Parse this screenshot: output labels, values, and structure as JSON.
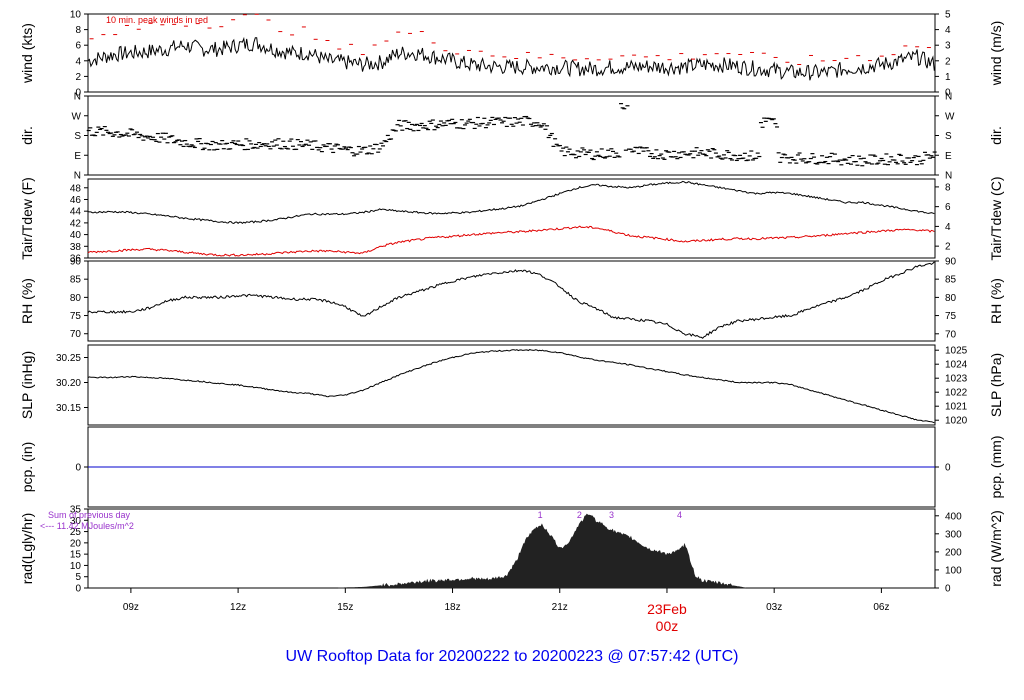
{
  "title": "UW Rooftop Data for 20200222  to  20200223 @ 07:57:42  (UTC)",
  "x_axis": {
    "ticks": [
      "09z",
      "12z",
      "15z",
      "18z",
      "21z",
      "00z",
      "03z",
      "06z"
    ],
    "date_label": "23Feb",
    "date_tick": "00z",
    "date_color": "#e00000"
  },
  "chart_data": [
    {
      "type": "line",
      "name": "wind",
      "ylabel_left": "wind (kts)",
      "ylabel_right": "wind (m/s)",
      "left_ticks": [
        "0",
        "2",
        "4",
        "6",
        "8",
        "10"
      ],
      "right_ticks": [
        "0",
        "1",
        "2",
        "3",
        "4",
        "5"
      ],
      "ylim": [
        0,
        10
      ],
      "annotation": "10 min. peak winds in red",
      "annotation_color": "#e00000",
      "x": [
        7.8,
        8.5,
        9,
        9.5,
        10,
        10.5,
        11,
        11.5,
        12,
        12.5,
        13,
        13.5,
        14,
        14.5,
        15,
        15.5,
        16,
        16.5,
        17,
        17.5,
        18,
        18.5,
        19,
        19.5,
        20,
        20.5,
        21,
        21.5,
        22,
        22.5,
        23,
        23.5,
        24,
        24.5,
        25,
        25.5,
        26,
        26.5,
        27,
        27.5,
        28,
        28.5,
        29,
        29.5,
        30,
        30.5,
        31,
        31.5
      ],
      "series": [
        {
          "values": [
            4,
            4.8,
            5,
            5.2,
            5.5,
            6,
            5.5,
            5.5,
            6,
            6.3,
            5.5,
            5,
            5,
            4,
            3.8,
            3.5,
            3.8,
            5,
            5,
            4.5,
            4,
            3.5,
            3.3,
            3.2,
            3.2,
            3.2,
            3.2,
            3,
            3,
            3.2,
            3.2,
            3.3,
            3.2,
            3.2,
            3.5,
            3.5,
            3.3,
            3,
            2.8,
            2.5,
            2.5,
            2.5,
            3,
            3.2,
            3.5,
            4,
            4.5,
            3.5
          ],
          "color": "#000000"
        },
        {
          "values": [
            6.5,
            7.5,
            8,
            8.5,
            8.8,
            9,
            8.8,
            9,
            9.5,
            9.5,
            8.5,
            8,
            7.5,
            6,
            5.5,
            5.5,
            6.5,
            7.5,
            7.5,
            6.5,
            5.5,
            5.5,
            5,
            4.8,
            4.5,
            4.5,
            4.5,
            4.5,
            4.5,
            4.8,
            4.5,
            4.5,
            4.5,
            4.5,
            5,
            5,
            5,
            4.5,
            4,
            4,
            4,
            4,
            4.5,
            4.5,
            4.8,
            5.5,
            6,
            5.5
          ],
          "color": "#e00000"
        }
      ]
    },
    {
      "type": "scatter",
      "name": "dir",
      "ylabel_left": "dir.",
      "ylabel_right": "dir.",
      "left_ticks": [
        "N",
        "E",
        "S",
        "W",
        "N"
      ],
      "right_ticks": [
        "N",
        "E",
        "S",
        "W",
        "N"
      ],
      "ylim": [
        0,
        360
      ],
      "x": [
        7.8,
        8.5,
        9,
        9.5,
        10,
        10.5,
        11,
        11.5,
        12,
        12.5,
        13,
        13.5,
        14,
        14.5,
        15,
        15.5,
        16,
        16.5,
        17,
        17.5,
        18,
        18.5,
        19,
        19.5,
        20,
        20.5,
        21,
        21.5,
        22,
        22.5,
        23,
        23.5,
        24,
        24.5,
        25,
        25.5,
        26,
        26.5,
        27,
        27.5,
        28,
        28.5,
        29,
        29.5,
        30,
        30.5,
        31,
        31.5
      ],
      "series": [
        {
          "values": [
            200,
            195,
            185,
            175,
            165,
            150,
            140,
            135,
            140,
            140,
            145,
            140,
            135,
            125,
            115,
            110,
            130,
            225,
            225,
            230,
            235,
            235,
            240,
            240,
            245,
            240,
            110,
            100,
            95,
            100,
            110,
            100,
            95,
            100,
            100,
            95,
            90,
            85,
            80,
            80,
            75,
            75,
            70,
            65,
            70,
            75,
            70,
            90
          ],
          "color": "#000000"
        }
      ]
    },
    {
      "type": "line",
      "name": "temperature",
      "ylabel_left": "Tair/Tdew (F)",
      "ylabel_right": "Tair/Tdew (C)",
      "left_ticks": [
        "36",
        "38",
        "40",
        "42",
        "44",
        "46",
        "48"
      ],
      "right_ticks": [
        "2",
        "4",
        "6",
        "8"
      ],
      "ylim": [
        36,
        49.5
      ],
      "x": [
        7.8,
        8.5,
        9,
        9.5,
        10,
        10.5,
        11,
        11.5,
        12,
        12.5,
        13,
        13.5,
        14,
        14.5,
        15,
        15.5,
        16,
        16.5,
        17,
        17.5,
        18,
        18.5,
        19,
        19.5,
        20,
        20.5,
        21,
        21.5,
        22,
        22.5,
        23,
        23.5,
        24,
        24.5,
        25,
        25.5,
        26,
        26.5,
        27,
        27.5,
        28,
        28.5,
        29,
        29.5,
        30,
        30.5,
        31,
        31.5
      ],
      "series": [
        {
          "values": [
            43.8,
            43.9,
            43.8,
            43.5,
            43.2,
            42.8,
            42.5,
            42.2,
            42,
            42.2,
            42.5,
            43,
            43.5,
            43.5,
            43.5,
            43.8,
            44.3,
            44,
            43.8,
            43.6,
            43.7,
            43.8,
            44.2,
            44.5,
            45,
            46,
            47,
            48,
            48.5,
            48.2,
            48,
            48.5,
            48.8,
            49,
            48.5,
            48,
            47.5,
            47,
            47.2,
            47,
            46.5,
            46,
            45.5,
            45.5,
            45,
            44.5,
            44,
            43.5
          ],
          "color": "#000000"
        },
        {
          "values": [
            37,
            37.2,
            37.4,
            37.5,
            37.3,
            37,
            36.7,
            36.5,
            36.5,
            36.6,
            36.8,
            37,
            37.2,
            37.2,
            37,
            36.8,
            38,
            38.7,
            39.1,
            39.5,
            39.7,
            40,
            40.2,
            40.4,
            40.5,
            40.8,
            41,
            41.3,
            41.2,
            40.5,
            39.8,
            39.5,
            39.2,
            38.8,
            39,
            39.2,
            39.3,
            39.3,
            39.4,
            39.5,
            39.7,
            39.9,
            40.2,
            40.4,
            40.6,
            40.8,
            40.8,
            40.5
          ],
          "color": "#e00000"
        }
      ]
    },
    {
      "type": "line",
      "name": "rh",
      "ylabel_left": "RH (%)",
      "ylabel_right": "RH (%)",
      "left_ticks": [
        "70",
        "75",
        "80",
        "85",
        "90"
      ],
      "right_ticks": [
        "70",
        "75",
        "80",
        "85",
        "90"
      ],
      "ylim": [
        68,
        90
      ],
      "x": [
        7.8,
        8.5,
        9,
        9.5,
        10,
        10.5,
        11,
        11.5,
        12,
        12.5,
        13,
        13.5,
        14,
        14.5,
        15,
        15.5,
        16,
        16.5,
        17,
        17.5,
        18,
        18.5,
        19,
        19.5,
        20,
        20.5,
        21,
        21.5,
        22,
        22.5,
        23,
        23.5,
        24,
        24.5,
        25,
        25.5,
        26,
        26.5,
        27,
        27.5,
        28,
        28.5,
        29,
        29.5,
        30,
        30.5,
        31,
        31.5
      ],
      "series": [
        {
          "values": [
            76,
            76,
            76,
            77,
            79,
            80,
            80,
            80,
            80.5,
            80.5,
            80,
            79.5,
            79.5,
            79,
            77.5,
            74.5,
            77.5,
            80,
            81.5,
            83,
            84.5,
            85.5,
            86.5,
            87,
            87.5,
            86,
            83,
            79,
            77,
            74.5,
            74,
            73.5,
            72.5,
            70,
            69,
            72,
            73.5,
            74,
            74.5,
            75,
            77,
            78.5,
            80,
            82,
            84.5,
            86.5,
            88.5,
            89.5
          ],
          "color": "#000000"
        }
      ]
    },
    {
      "type": "line",
      "name": "slp",
      "ylabel_left": "SLP (inHg)",
      "ylabel_right": "SLP (hPa)",
      "left_ticks": [
        "30.15",
        "30.20",
        "30.25"
      ],
      "right_ticks": [
        "1020",
        "1021",
        "1022",
        "1023",
        "1024",
        "1025"
      ],
      "ylim": [
        30.115,
        30.275
      ],
      "x": [
        7.8,
        8.5,
        9,
        9.5,
        10,
        10.5,
        11,
        11.5,
        12,
        12.5,
        13,
        13.5,
        14,
        14.5,
        15,
        15.5,
        16,
        16.5,
        17,
        17.5,
        18,
        18.5,
        19,
        19.5,
        20,
        20.5,
        21,
        21.5,
        22,
        22.5,
        23,
        23.5,
        24,
        24.5,
        25,
        25.5,
        26,
        26.5,
        27,
        27.5,
        28,
        28.5,
        29,
        29.5,
        30,
        30.5,
        31,
        31.5
      ],
      "series": [
        {
          "values": [
            30.21,
            30.21,
            30.212,
            30.21,
            30.208,
            30.205,
            30.202,
            30.198,
            30.195,
            30.19,
            30.185,
            30.18,
            30.178,
            30.172,
            30.175,
            30.185,
            30.2,
            30.215,
            30.228,
            30.24,
            30.25,
            30.258,
            30.262,
            30.264,
            30.265,
            30.264,
            30.26,
            30.252,
            30.245,
            30.24,
            30.235,
            30.228,
            30.222,
            30.215,
            30.21,
            30.205,
            30.2,
            30.2,
            30.2,
            30.195,
            30.185,
            30.175,
            30.165,
            30.155,
            30.145,
            30.135,
            30.125,
            30.12
          ],
          "color": "#000000"
        }
      ]
    },
    {
      "type": "line",
      "name": "precip",
      "ylabel_left": "pcp. (in)",
      "ylabel_right": "pcp. (mm)",
      "left_ticks": [
        "0"
      ],
      "right_ticks": [
        "0"
      ],
      "ylim": [
        -1,
        1
      ],
      "x": [
        7.8,
        31.5
      ],
      "series": [
        {
          "values": [
            0,
            0
          ],
          "color": "#0000cc"
        }
      ]
    },
    {
      "type": "area",
      "name": "radiation",
      "ylabel_left": "rad(Lgly/hr)",
      "ylabel_right": "rad (W/m^2)",
      "left_ticks": [
        "0",
        "5",
        "10",
        "15",
        "20",
        "25",
        "30",
        "35"
      ],
      "right_ticks": [
        "0",
        "100",
        "200",
        "300",
        "400"
      ],
      "ylim": [
        0,
        35
      ],
      "x": [
        14.8,
        15.5,
        16,
        16.5,
        17,
        17.5,
        18,
        18.5,
        19,
        19.5,
        19.8,
        20,
        20.3,
        20.5,
        20.8,
        21,
        21.3,
        21.5,
        21.8,
        22,
        22.5,
        23,
        23.5,
        24,
        24.3,
        24.5,
        24.8,
        25,
        25.5,
        26.2
      ],
      "series": [
        {
          "values": [
            0,
            0.3,
            1,
            1.5,
            2.5,
            3,
            3.5,
            4,
            3.5,
            5,
            12,
            20,
            26,
            28,
            22,
            17,
            21,
            27,
            33,
            30,
            25,
            22,
            17,
            15,
            16,
            19,
            5,
            3,
            2,
            0
          ],
          "color": "#222222"
        }
      ],
      "sum_label_1": "Sum of previous day",
      "sum_label_2": "<--- 11.42 MJoules/m^2",
      "sum_color": "#9933cc",
      "marker_labels": [
        "1",
        "2",
        "3",
        "4"
      ],
      "marker_x": [
        20.45,
        21.55,
        22.45,
        24.35
      ],
      "marker_color": "#9933cc"
    }
  ]
}
